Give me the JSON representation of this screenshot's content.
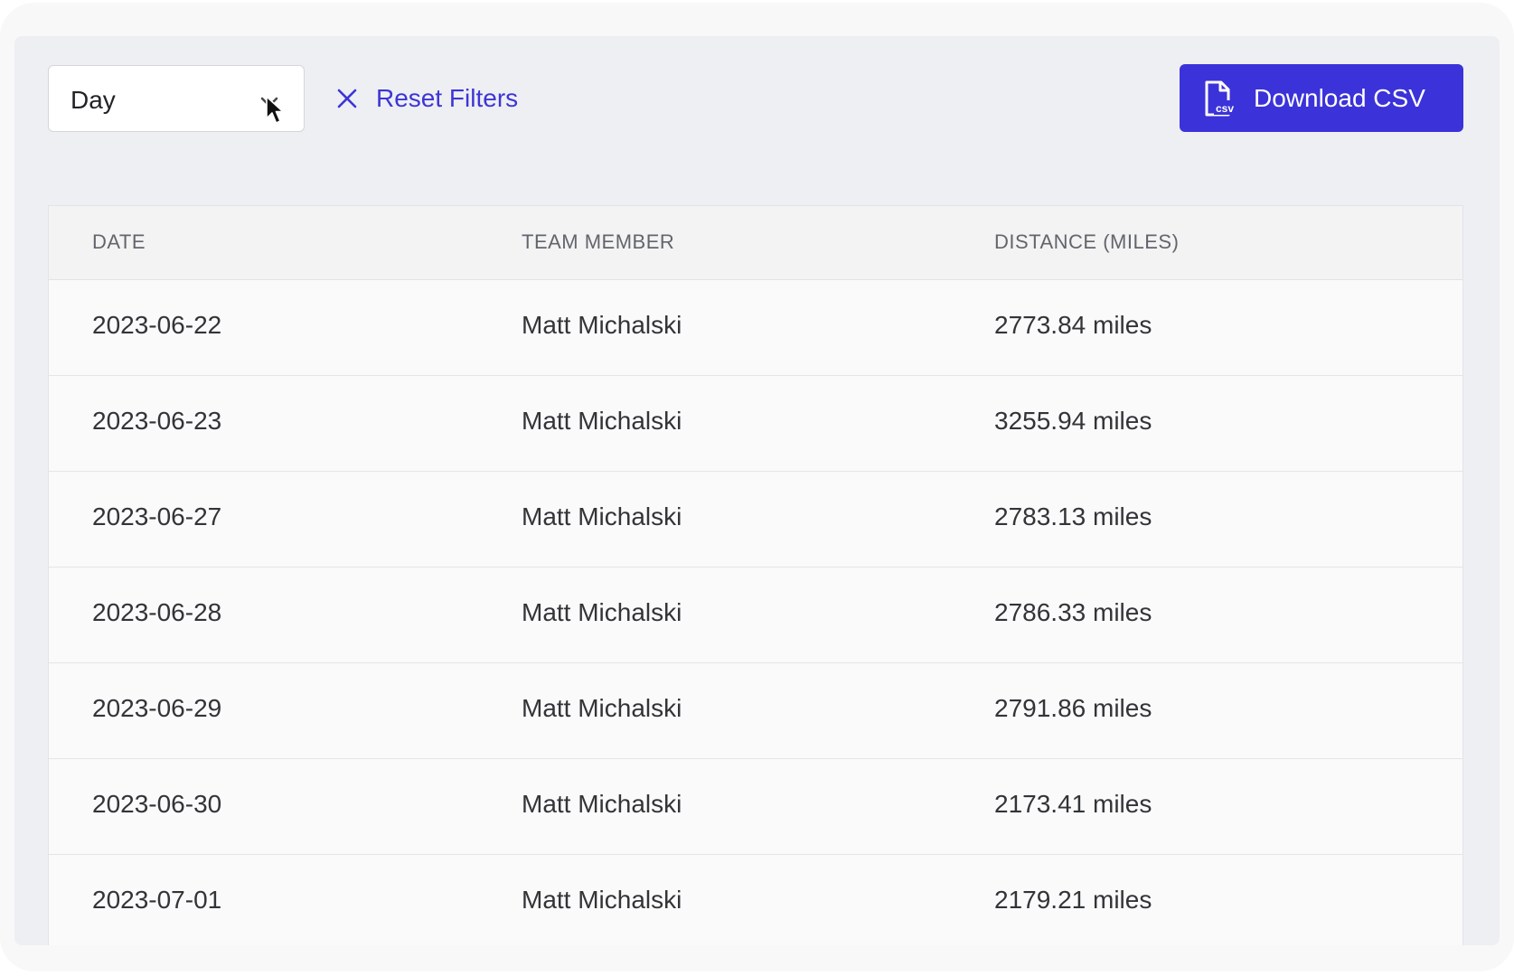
{
  "filters": {
    "period_select_value": "Day",
    "reset_label": "Reset Filters",
    "download_label": "Download CSV"
  },
  "icons": {
    "chevron": "chevron-down-icon",
    "reset": "close-icon",
    "download": "csv-file-icon",
    "cursor": "mouse-pointer-icon"
  },
  "colors": {
    "accent": "#3b32d9",
    "link": "#3d35d6"
  },
  "table": {
    "headers": [
      "DATE",
      "TEAM MEMBER",
      "DISTANCE (MILES)"
    ],
    "rows": [
      {
        "date": "2023-06-22",
        "member": "Matt Michalski",
        "distance": "2773.84 miles"
      },
      {
        "date": "2023-06-23",
        "member": "Matt Michalski",
        "distance": "3255.94 miles"
      },
      {
        "date": "2023-06-27",
        "member": "Matt Michalski",
        "distance": "2783.13 miles"
      },
      {
        "date": "2023-06-28",
        "member": "Matt Michalski",
        "distance": "2786.33 miles"
      },
      {
        "date": "2023-06-29",
        "member": "Matt Michalski",
        "distance": "2791.86 miles"
      },
      {
        "date": "2023-06-30",
        "member": "Matt Michalski",
        "distance": "2173.41 miles"
      },
      {
        "date": "2023-07-01",
        "member": "Matt Michalski",
        "distance": "2179.21 miles"
      }
    ]
  }
}
